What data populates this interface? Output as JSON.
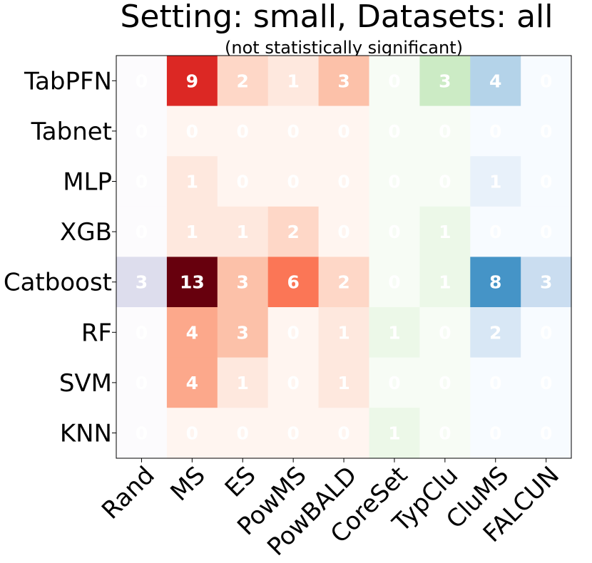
{
  "chart_data": {
    "type": "heatmap",
    "title": "Setting: small, Datasets: all",
    "subtitle": "(not statistically significant)",
    "rows": [
      "TabPFN",
      "Tabnet",
      "MLP",
      "XGB",
      "Catboost",
      "RF",
      "SVM",
      "KNN"
    ],
    "columns": [
      "Rand",
      "MS",
      "ES",
      "PowMS",
      "PowBALD",
      "CoreSet",
      "TypClu",
      "CluMS",
      "FALCUN"
    ],
    "values": [
      [
        0,
        9,
        2,
        1,
        3,
        0,
        3,
        4,
        0
      ],
      [
        0,
        0,
        0,
        0,
        0,
        0,
        0,
        0,
        0
      ],
      [
        0,
        1,
        0,
        0,
        0,
        0,
        0,
        1,
        0
      ],
      [
        0,
        1,
        1,
        2,
        0,
        0,
        1,
        0,
        0
      ],
      [
        3,
        13,
        3,
        6,
        2,
        0,
        1,
        8,
        3
      ],
      [
        0,
        4,
        3,
        0,
        1,
        1,
        0,
        2,
        0
      ],
      [
        0,
        4,
        1,
        0,
        1,
        0,
        0,
        0,
        0
      ],
      [
        0,
        0,
        0,
        0,
        0,
        1,
        0,
        0,
        0
      ]
    ],
    "column_colormaps": [
      "Purples",
      "Reds",
      "Reds",
      "Reds",
      "Reds",
      "Greens",
      "Greens",
      "Blues",
      "Blues"
    ],
    "color_max": 13,
    "xlabel": "",
    "ylabel": ""
  }
}
